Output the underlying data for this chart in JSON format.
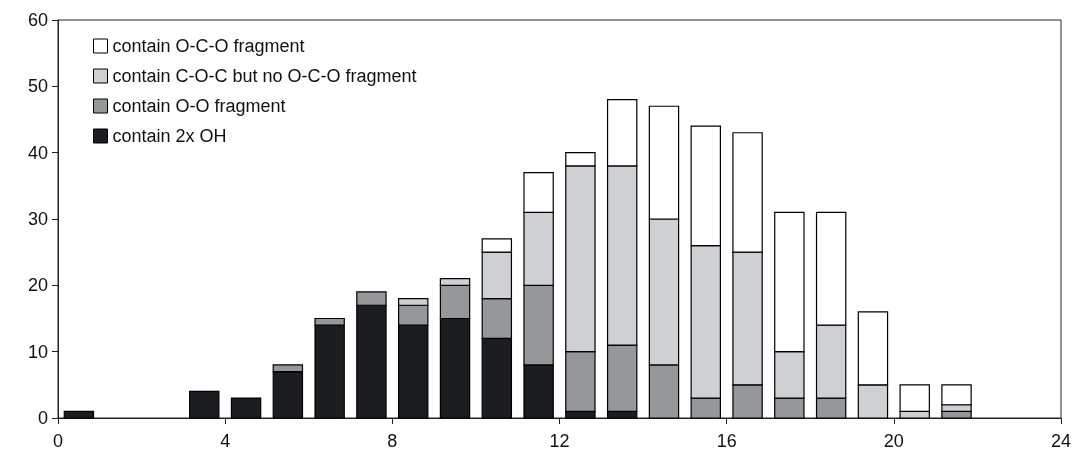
{
  "chart_data": {
    "type": "bar",
    "stacked": true,
    "x": [
      0.5,
      3.5,
      4.5,
      5.5,
      6.5,
      7.5,
      8.5,
      9.5,
      10.5,
      11.5,
      12.5,
      13.5,
      14.5,
      15.5,
      16.5,
      17.5,
      18.5,
      19.5,
      20.5,
      21.5
    ],
    "series": [
      {
        "name": "contain 2x OH",
        "color": "#1c1d21",
        "values": [
          1,
          4,
          3,
          7,
          14,
          17,
          14,
          15,
          12,
          8,
          1,
          1,
          0,
          0,
          0,
          0,
          0,
          0,
          0,
          0
        ]
      },
      {
        "name": "contain O-O fragment",
        "color": "#96979b",
        "values": [
          0,
          0,
          0,
          1,
          1,
          2,
          3,
          5,
          6,
          12,
          9,
          10,
          8,
          3,
          5,
          3,
          3,
          0,
          0,
          1
        ]
      },
      {
        "name": "contain C-O-C but no O-C-O fragment",
        "color": "#cfd0d4",
        "values": [
          0,
          0,
          0,
          0,
          0,
          0,
          1,
          1,
          7,
          11,
          28,
          27,
          22,
          23,
          20,
          7,
          11,
          5,
          1,
          1
        ]
      },
      {
        "name": "contain O-C-O fragment",
        "color": "#ffffff",
        "values": [
          0,
          0,
          0,
          0,
          0,
          0,
          0,
          0,
          2,
          6,
          2,
          10,
          17,
          18,
          18,
          21,
          17,
          11,
          4,
          3
        ]
      }
    ],
    "xlim": [
      0,
      24
    ],
    "xticks": [
      0,
      4,
      8,
      12,
      16,
      20,
      24
    ],
    "ylim": [
      0,
      60
    ],
    "yticks": [
      0,
      10,
      20,
      30,
      40,
      50,
      60
    ],
    "grid": false,
    "legend": "top left"
  }
}
